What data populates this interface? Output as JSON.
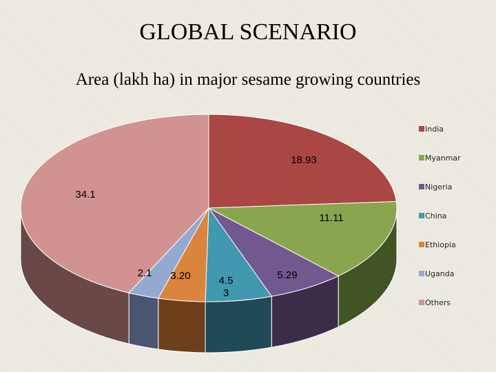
{
  "slide": {
    "title": "GLOBAL SCENARIO"
  },
  "chart_data": {
    "type": "pie",
    "title": "Area (lakh ha) in major sesame growing countries",
    "three_d": true,
    "legend_position": "right",
    "slices": [
      {
        "name": "India",
        "value": 18.93,
        "label": "18.93",
        "color": "#aa4644",
        "side_color": "#6e2b2a"
      },
      {
        "name": "Myanmar",
        "value": 11.11,
        "label": "11.11",
        "color": "#89a54e",
        "side_color": "#435424"
      },
      {
        "name": "Nigeria",
        "value": 5.29,
        "label": "5.29",
        "color": "#71588f",
        "side_color": "#3b2d4a"
      },
      {
        "name": "China",
        "value": 4.53,
        "label": "4.5\n3",
        "color": "#4298af",
        "side_color": "#1f4a56"
      },
      {
        "name": "Ethiopia",
        "value": 3.2,
        "label": "3.20",
        "color": "#db843d",
        "side_color": "#6e3f1b"
      },
      {
        "name": "Uganda",
        "value": 2.1,
        "label": "2.1",
        "color": "#93a9d0",
        "side_color": "#4a5570"
      },
      {
        "name": "Others",
        "value": 34.1,
        "label": "34.1",
        "color": "#d09392",
        "side_color": "#6a4848"
      }
    ]
  }
}
